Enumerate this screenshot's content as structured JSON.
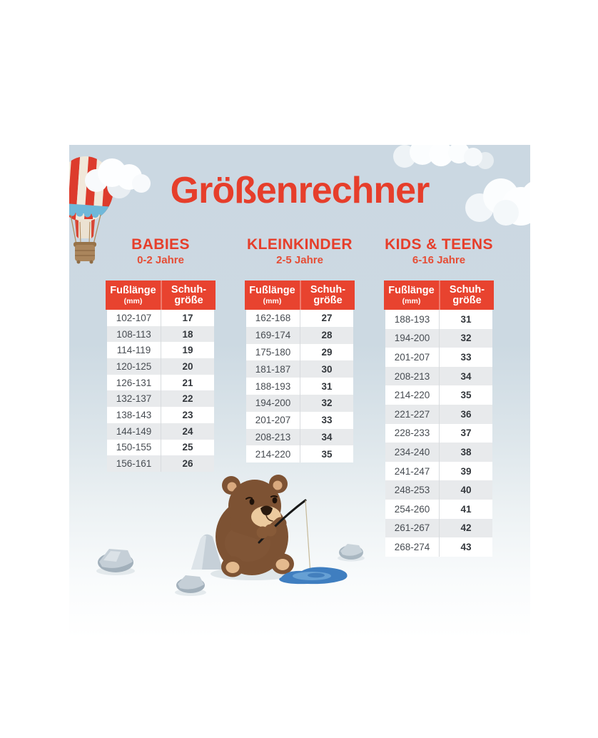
{
  "title": "Größenrechner",
  "chart_data": [
    {
      "type": "table",
      "name": "BABIES",
      "age_range": "0-2 Jahre",
      "columns": {
        "foot_length": "Fußlänge",
        "foot_length_unit": "(mm)",
        "shoe_size_line1": "Schuh-",
        "shoe_size_line2": "größe"
      },
      "rows": [
        [
          "102-107",
          "17"
        ],
        [
          "108-113",
          "18"
        ],
        [
          "114-119",
          "19"
        ],
        [
          "120-125",
          "20"
        ],
        [
          "126-131",
          "21"
        ],
        [
          "132-137",
          "22"
        ],
        [
          "138-143",
          "23"
        ],
        [
          "144-149",
          "24"
        ],
        [
          "150-155",
          "25"
        ],
        [
          "156-161",
          "26"
        ]
      ]
    },
    {
      "type": "table",
      "name": "KLEINKINDER",
      "age_range": "2-5 Jahre",
      "columns": {
        "foot_length": "Fußlänge",
        "foot_length_unit": "(mm)",
        "shoe_size_line1": "Schuh-",
        "shoe_size_line2": "größe"
      },
      "rows": [
        [
          "162-168",
          "27"
        ],
        [
          "169-174",
          "28"
        ],
        [
          "175-180",
          "29"
        ],
        [
          "181-187",
          "30"
        ],
        [
          "188-193",
          "31"
        ],
        [
          "194-200",
          "32"
        ],
        [
          "201-207",
          "33"
        ],
        [
          "208-213",
          "34"
        ],
        [
          "214-220",
          "35"
        ]
      ]
    },
    {
      "type": "table",
      "name": "KIDS & TEENS",
      "age_range": "6-16 Jahre",
      "columns": {
        "foot_length": "Fußlänge",
        "foot_length_unit": "(mm)",
        "shoe_size_line1": "Schuh-",
        "shoe_size_line2": "größe"
      },
      "rows": [
        [
          "188-193",
          "31"
        ],
        [
          "194-200",
          "32"
        ],
        [
          "201-207",
          "33"
        ],
        [
          "208-213",
          "34"
        ],
        [
          "214-220",
          "35"
        ],
        [
          "221-227",
          "36"
        ],
        [
          "228-233",
          "37"
        ],
        [
          "234-240",
          "38"
        ],
        [
          "241-247",
          "39"
        ],
        [
          "248-253",
          "40"
        ],
        [
          "254-260",
          "41"
        ],
        [
          "261-267",
          "42"
        ],
        [
          "268-274",
          "43"
        ]
      ]
    }
  ],
  "illustrations": {
    "hot_air_balloon": "hot-air-balloon",
    "clouds": "white-clouds",
    "bear": "teddy-bear-ice-fishing",
    "puddle": "ice-fishing-hole",
    "stones": "gray-stones"
  },
  "colors": {
    "header_red": "#e8432f",
    "title_red": "#e63e2b",
    "panel_blue_top": "#cbd8e2",
    "row_alt_gray": "#e8eaec",
    "puddle_blue": "#3f7ec0",
    "bear_brown": "#7d5233"
  }
}
